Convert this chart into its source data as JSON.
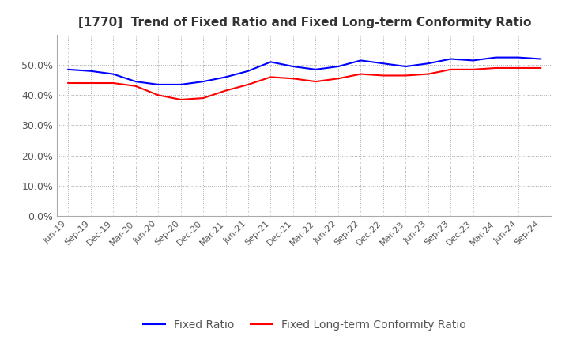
{
  "title": "[1770]  Trend of Fixed Ratio and Fixed Long-term Conformity Ratio",
  "title_fontsize": 11,
  "x_labels": [
    "Jun-19",
    "Sep-19",
    "Dec-19",
    "Mar-20",
    "Jun-20",
    "Sep-20",
    "Dec-20",
    "Mar-21",
    "Jun-21",
    "Sep-21",
    "Dec-21",
    "Mar-22",
    "Jun-22",
    "Sep-22",
    "Dec-22",
    "Mar-23",
    "Jun-23",
    "Sep-23",
    "Dec-23",
    "Mar-24",
    "Jun-24",
    "Sep-24"
  ],
  "fixed_ratio": [
    48.5,
    48.0,
    47.0,
    44.5,
    43.5,
    43.5,
    44.5,
    46.0,
    48.0,
    51.0,
    49.5,
    48.5,
    49.5,
    51.5,
    50.5,
    49.5,
    50.5,
    52.0,
    51.5,
    52.5,
    52.5,
    52.0
  ],
  "fixed_lt_ratio": [
    44.0,
    44.0,
    44.0,
    43.0,
    40.0,
    38.5,
    39.0,
    41.5,
    43.5,
    46.0,
    45.5,
    44.5,
    45.5,
    47.0,
    46.5,
    46.5,
    47.0,
    48.5,
    48.5,
    49.0,
    49.0,
    49.0
  ],
  "fixed_ratio_color": "#0000FF",
  "fixed_lt_ratio_color": "#FF0000",
  "ylim": [
    0,
    60
  ],
  "yticks": [
    0,
    10,
    20,
    30,
    40,
    50
  ],
  "background_color": "#ffffff",
  "grid_color": "#aaaaaa",
  "legend_fixed_ratio": "Fixed Ratio",
  "legend_fixed_lt_ratio": "Fixed Long-term Conformity Ratio"
}
